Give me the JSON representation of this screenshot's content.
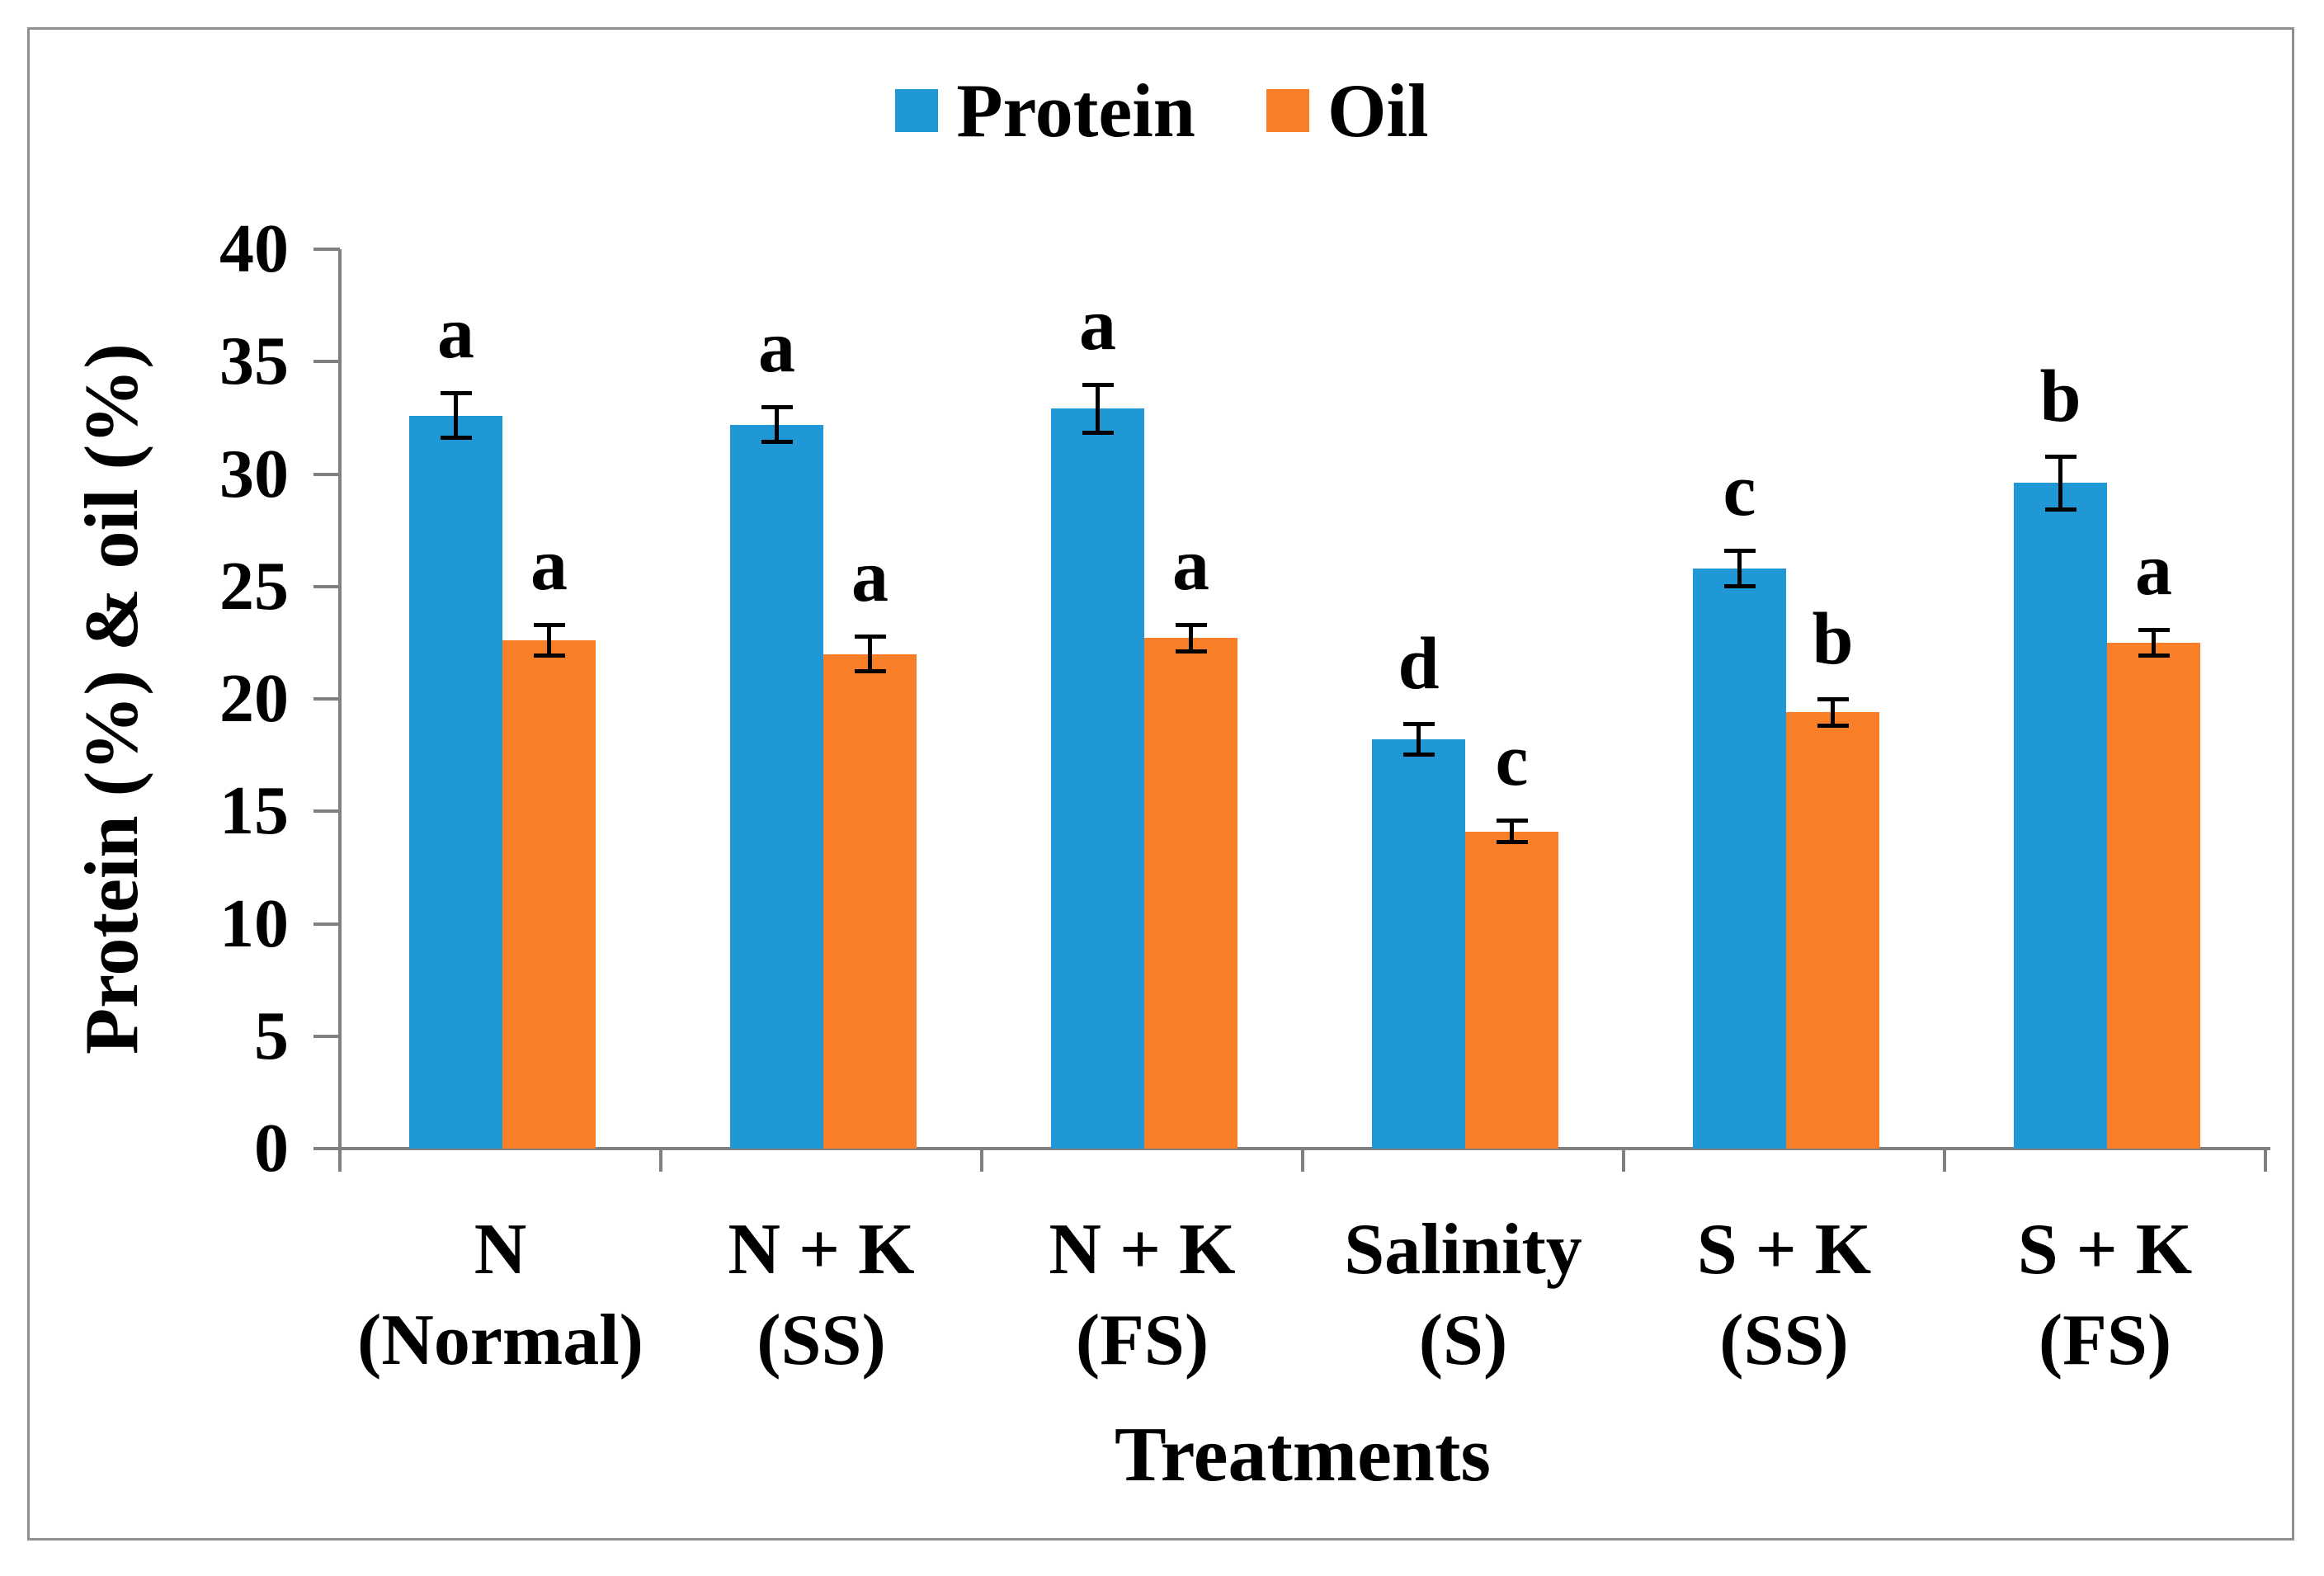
{
  "chart_data": {
    "type": "bar",
    "title": "",
    "xlabel": "Treatments",
    "ylabel": "Protein (%) & oil (%)",
    "ylim": [
      0,
      40
    ],
    "yticks": [
      0,
      5,
      10,
      15,
      20,
      25,
      30,
      35,
      40
    ],
    "grid": false,
    "legend_position": "top-center",
    "categories": [
      {
        "line1": "N",
        "line2": "(Normal)"
      },
      {
        "line1": "N + K",
        "line2": "(SS)"
      },
      {
        "line1": "N + K",
        "line2": "(FS)"
      },
      {
        "line1": "Salinity",
        "line2": "(S)"
      },
      {
        "line1": "S + K",
        "line2": "(SS)"
      },
      {
        "line1": "S + K",
        "line2": "(FS)"
      }
    ],
    "series": [
      {
        "name": "Protein",
        "color": "#2098D6",
        "values": [
          32.6,
          32.2,
          32.9,
          18.2,
          25.8,
          29.6
        ],
        "errors": [
          1.0,
          0.8,
          1.1,
          0.7,
          0.8,
          1.2
        ],
        "letters": [
          "a",
          "a",
          "a",
          "d",
          "c",
          "b"
        ]
      },
      {
        "name": "Oil",
        "color": "#F97E28",
        "values": [
          22.6,
          22.0,
          22.7,
          14.1,
          19.4,
          22.5
        ],
        "errors": [
          0.7,
          0.8,
          0.6,
          0.5,
          0.6,
          0.6
        ],
        "letters": [
          "a",
          "a",
          "a",
          "c",
          "b",
          "a"
        ]
      }
    ]
  },
  "colors": {
    "axis": "#7F7F7F",
    "frame_border": "#8F8F8F",
    "error_bar": "#000000",
    "text": "#000000"
  }
}
